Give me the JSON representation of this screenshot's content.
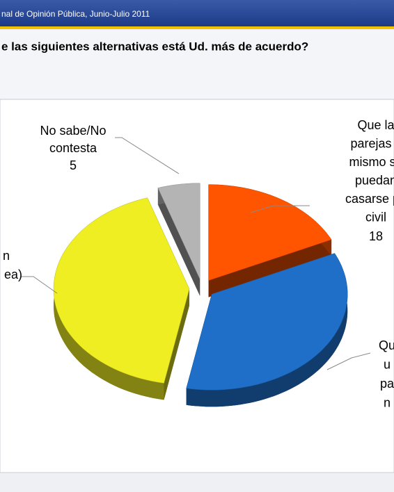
{
  "header": "nal de Opinión Pública, Junio-Julio 2011",
  "title": "e las siguientes alternativas está Ud. más de acuerdo?",
  "chart_data": {
    "type": "pie",
    "categories": [
      [
        "Que la",
        "parejas c",
        "mismo se",
        "puedan",
        "casarse po",
        "civil"
      ],
      [
        "Qu",
        "u",
        "pa",
        "n"
      ],
      [
        "n",
        "ea)"
      ],
      [
        "No sabe/No",
        "contesta"
      ]
    ],
    "values": [
      18,
      35,
      42,
      5
    ],
    "colors": [
      "#ff5500",
      "#1f6fc8",
      "#eeee22",
      "#b4b4b4"
    ]
  }
}
